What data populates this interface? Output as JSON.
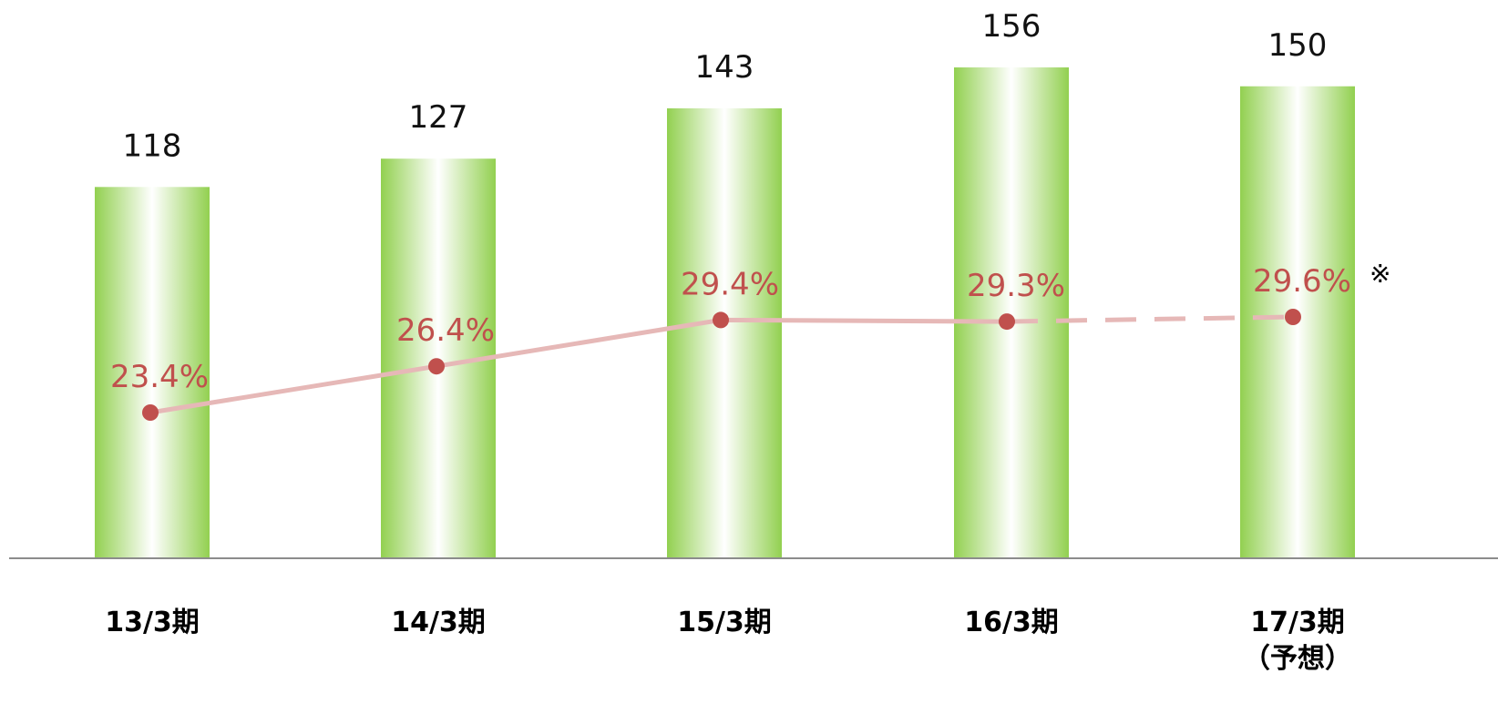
{
  "chart_data": {
    "type": "bar",
    "categories": [
      [
        "13/3期"
      ],
      [
        "14/3期"
      ],
      [
        "15/3期"
      ],
      [
        "16/3期"
      ],
      [
        "17/3期",
        "（予想）"
      ]
    ],
    "series": [
      {
        "type": "bar",
        "values": [
          118,
          127,
          143,
          156,
          150
        ],
        "color": "#92d050"
      },
      {
        "type": "line",
        "values": [
          23.4,
          26.4,
          29.4,
          29.3,
          29.6
        ],
        "labels": [
          "23.4%",
          "26.4%",
          "29.4%",
          "29.3%",
          "29.6%"
        ],
        "color": "#c0504d",
        "line_color": "#e6b8b7",
        "forecast_from_index": 3
      }
    ],
    "annotations": [
      "※"
    ],
    "grid": false,
    "legend": "none"
  }
}
